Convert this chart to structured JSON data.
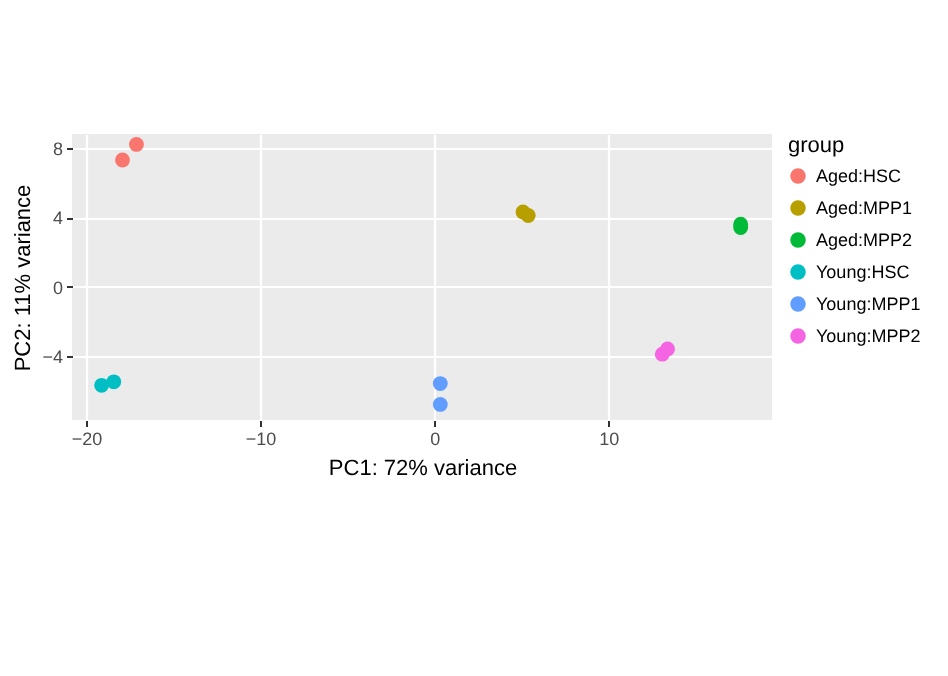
{
  "chart_data": {
    "type": "scatter",
    "xlabel": "PC1: 72% variance",
    "ylabel": "PC2: 11% variance",
    "legend_title": "group",
    "legend": "right",
    "grid": true,
    "marker": "circle",
    "xlim": [
      -20.8,
      19.4
    ],
    "xticks": [
      -20,
      -10,
      0,
      10
    ],
    "ylim": [
      -7.7,
      8.8
    ],
    "yticks": [
      -4,
      0,
      4,
      8
    ],
    "series": [
      {
        "name": "Aged:HSC",
        "color": "#f8766d",
        "x": [
          -17.1,
          -17.9
        ],
        "values": [
          8.2,
          7.3
        ]
      },
      {
        "name": "Aged:MPP1",
        "color": "#b79f00",
        "x": [
          5.1,
          5.4
        ],
        "values": [
          4.3,
          4.1
        ]
      },
      {
        "name": "Aged:MPP2",
        "color": "#00ba38",
        "x": [
          17.6,
          17.6
        ],
        "values": [
          3.4,
          3.6
        ]
      },
      {
        "name": "Young:HSC",
        "color": "#00bfc4",
        "x": [
          -19.1,
          -18.4
        ],
        "values": [
          -5.7,
          -5.5
        ]
      },
      {
        "name": "Young:MPP1",
        "color": "#619cff",
        "x": [
          0.35,
          0.35
        ],
        "values": [
          -5.6,
          -6.8
        ]
      },
      {
        "name": "Young:MPP2",
        "color": "#f564e3",
        "x": [
          13.1,
          13.4
        ],
        "values": [
          -3.9,
          -3.6
        ]
      }
    ]
  }
}
